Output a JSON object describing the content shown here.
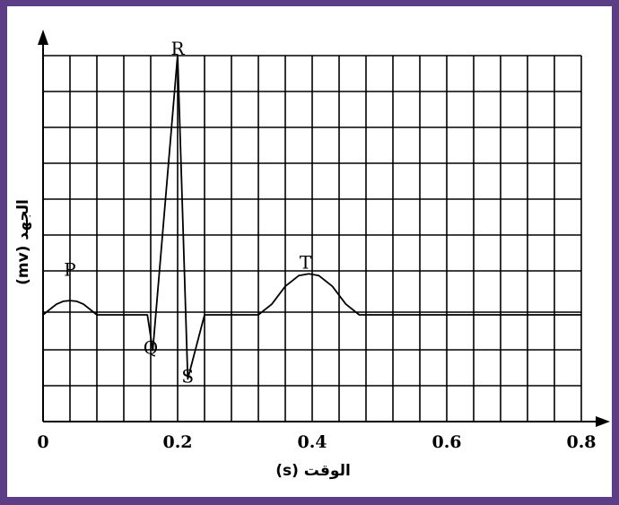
{
  "chart_data": {
    "type": "line",
    "xlabel": "الوقت (s)",
    "ylabel": "الجهد (mv)",
    "xlim": [
      0,
      0.8
    ],
    "x_ticks": [
      "0",
      "0.2",
      "0.4",
      "0.6",
      "0.8"
    ],
    "grid": true,
    "grid_step_x": 0.04,
    "wave_labels": [
      {
        "text": "P",
        "x": 0.04,
        "y": 1.1
      },
      {
        "text": "Q",
        "x": 0.16,
        "y": -1.1
      },
      {
        "text": "R",
        "x": 0.2,
        "y": 7.3
      },
      {
        "text": "S",
        "x": 0.215,
        "y": -1.9
      },
      {
        "text": "T",
        "x": 0.39,
        "y": 1.3
      }
    ],
    "series": [
      {
        "points": [
          [
            0.0,
            0.0
          ],
          [
            0.01,
            0.15
          ],
          [
            0.02,
            0.3
          ],
          [
            0.03,
            0.38
          ],
          [
            0.04,
            0.4
          ],
          [
            0.05,
            0.38
          ],
          [
            0.06,
            0.3
          ],
          [
            0.07,
            0.15
          ],
          [
            0.08,
            0.0
          ],
          [
            0.155,
            0.0
          ],
          [
            0.163,
            -1.0
          ],
          [
            0.2,
            7.3
          ],
          [
            0.215,
            -1.8
          ],
          [
            0.24,
            0.0
          ],
          [
            0.32,
            0.0
          ],
          [
            0.34,
            0.3
          ],
          [
            0.36,
            0.8
          ],
          [
            0.38,
            1.1
          ],
          [
            0.395,
            1.15
          ],
          [
            0.41,
            1.1
          ],
          [
            0.43,
            0.8
          ],
          [
            0.45,
            0.3
          ],
          [
            0.47,
            0.0
          ],
          [
            0.8,
            0.0
          ]
        ]
      }
    ]
  }
}
